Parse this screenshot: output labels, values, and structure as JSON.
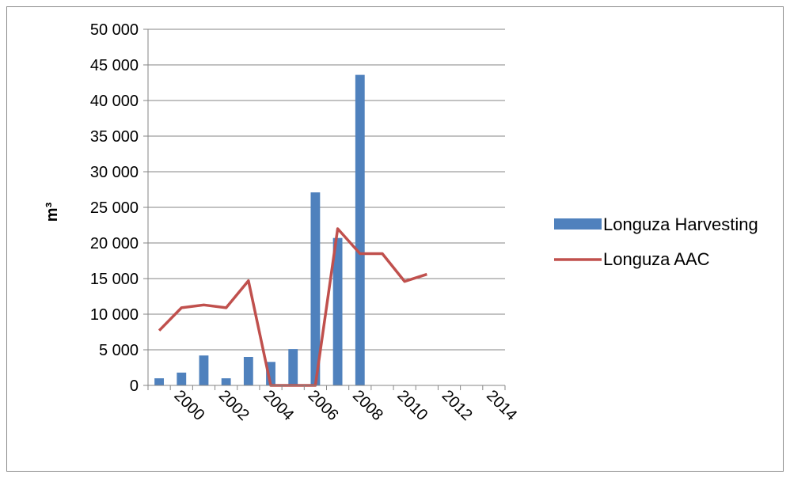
{
  "chart_data": {
    "type": "bar",
    "title": "",
    "xlabel": "",
    "ylabel": "m³",
    "ylim": [
      0,
      50000
    ],
    "yticks": [
      0,
      5000,
      10000,
      15000,
      20000,
      25000,
      30000,
      35000,
      40000,
      45000,
      50000
    ],
    "ytick_labels": [
      "0",
      "5 000",
      "10 000",
      "15 000",
      "20 000",
      "25 000",
      "30 000",
      "35 000",
      "40 000",
      "45 000",
      "50 000"
    ],
    "categories": [
      "2000",
      "2001",
      "2002",
      "2003",
      "2004",
      "2005",
      "2006",
      "2007",
      "2008",
      "2009",
      "2010",
      "2011",
      "2012",
      "2013",
      "2014",
      "2015"
    ],
    "xtick_labels": [
      "2000",
      "2002",
      "2004",
      "2006",
      "2008",
      "2010",
      "2012",
      "2014"
    ],
    "grid": true,
    "legend_position": "right",
    "series": [
      {
        "name": "Longuza Harvesting",
        "kind": "bar",
        "color": "#4f81bd",
        "values": [
          1000,
          1800,
          4200,
          1000,
          4000,
          3300,
          5100,
          27100,
          20700,
          43600,
          null,
          null,
          null,
          null,
          null,
          null
        ]
      },
      {
        "name": "Longuza AAC",
        "kind": "line",
        "color": "#c0504d",
        "values": [
          7700,
          10900,
          11300,
          10900,
          14700,
          0,
          0,
          0,
          22000,
          18500,
          18500,
          14600,
          15600,
          null,
          null,
          null
        ]
      }
    ]
  }
}
